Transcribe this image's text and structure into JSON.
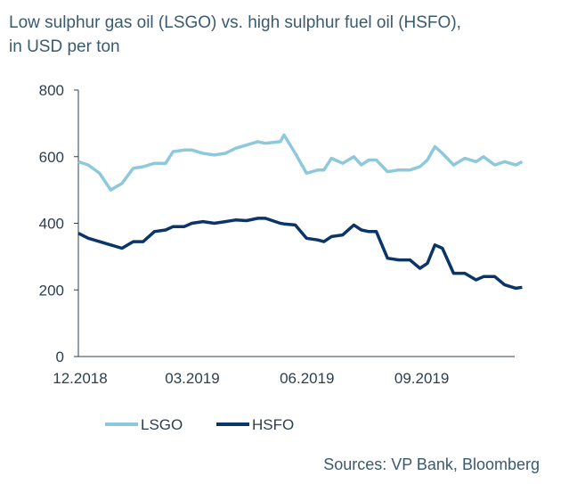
{
  "chart_data": {
    "type": "line",
    "title": "Low sulphur gas oil (LSGO) vs. high sulphur fuel oil (HSFO),",
    "subtitle": "in USD per ton",
    "xlabel": "",
    "ylabel": "",
    "ylim": [
      0,
      800
    ],
    "yticks": [
      "800",
      "600",
      "400",
      "200",
      "0"
    ],
    "xticks": [
      {
        "label": "12.2018",
        "date": "2018-12-01"
      },
      {
        "label": "03.2019",
        "date": "2019-03-01"
      },
      {
        "label": "06.2019",
        "date": "2019-06-01"
      },
      {
        "label": "09.2019",
        "date": "2019-09-01"
      }
    ],
    "grid": false,
    "legend": "bottom-left",
    "x": [
      "2018-12-01",
      "2018-12-09",
      "2018-12-18",
      "2018-12-27",
      "2019-01-05",
      "2019-01-14",
      "2019-01-22",
      "2019-01-31",
      "2019-02-09",
      "2019-02-15",
      "2019-02-24",
      "2019-03-02",
      "2019-03-11",
      "2019-03-20",
      "2019-03-29",
      "2019-04-06",
      "2019-04-15",
      "2019-04-24",
      "2019-04-30",
      "2019-05-12",
      "2019-05-15",
      "2019-05-24",
      "2019-06-02",
      "2019-06-11",
      "2019-06-16",
      "2019-06-22",
      "2019-07-01",
      "2019-07-10",
      "2019-07-16",
      "2019-07-22",
      "2019-07-28",
      "2019-08-06",
      "2019-08-15",
      "2019-08-24",
      "2019-09-01",
      "2019-09-07",
      "2019-09-13",
      "2019-09-19",
      "2019-09-28",
      "2019-10-07",
      "2019-10-16",
      "2019-10-22",
      "2019-10-31",
      "2019-11-08",
      "2019-11-17",
      "2019-11-22"
    ],
    "series": [
      {
        "name": "LSGO",
        "color": "#8ec8dc",
        "values": [
          585,
          575,
          550,
          500,
          520,
          565,
          570,
          580,
          580,
          615,
          620,
          620,
          610,
          605,
          610,
          625,
          635,
          645,
          640,
          645,
          665,
          610,
          550,
          560,
          560,
          595,
          580,
          600,
          575,
          590,
          590,
          555,
          560,
          560,
          570,
          590,
          630,
          610,
          575,
          595,
          585,
          600,
          575,
          585,
          575,
          585
        ]
      },
      {
        "name": "HSFO",
        "color": "#0b3468",
        "values": [
          370,
          355,
          345,
          335,
          325,
          345,
          345,
          375,
          380,
          390,
          390,
          400,
          405,
          400,
          405,
          410,
          408,
          415,
          415,
          400,
          398,
          395,
          355,
          350,
          345,
          360,
          365,
          395,
          380,
          375,
          375,
          295,
          290,
          290,
          265,
          280,
          335,
          325,
          250,
          250,
          230,
          240,
          240,
          215,
          205,
          208
        ]
      }
    ]
  },
  "source": "Sources: VP Bank, Bloomberg"
}
